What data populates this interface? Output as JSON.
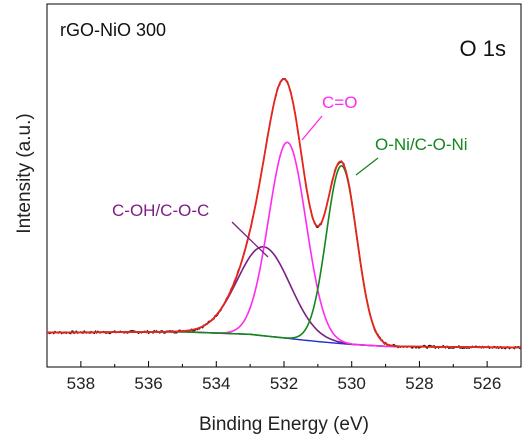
{
  "chart_data": {
    "type": "line",
    "sample_label": "rGO-NiO 300",
    "region_label": "O 1s",
    "xlabel": "Binding Energy (eV)",
    "ylabel": "Intensity (a.u.)",
    "xlim": [
      539,
      525
    ],
    "ylim": [
      0,
      1
    ],
    "x_ticks": [
      538,
      536,
      534,
      532,
      530,
      528,
      526
    ],
    "grid": false,
    "colors": {
      "raw": "#111111",
      "envelope": "#e8241c",
      "background": "#1f2bd6",
      "coh": "#7b1f84",
      "co": "#ff2bf0",
      "oni": "#15861b"
    },
    "peaks": [
      {
        "name": "C-OH/C-O-C",
        "center": 532.6,
        "sigma": 0.78,
        "height": 0.245,
        "color": "#7b1f84"
      },
      {
        "name": "C=O",
        "center": 531.9,
        "sigma": 0.55,
        "height": 0.54,
        "color": "#ff2bf0"
      },
      {
        "name": "O-Ni/C-O-Ni",
        "center": 530.3,
        "sigma": 0.45,
        "height": 0.49,
        "color": "#15861b"
      }
    ],
    "background_curve": {
      "x": [
        539,
        535,
        533,
        532,
        531,
        530,
        529,
        527,
        525
      ],
      "y": [
        0.095,
        0.097,
        0.09,
        0.08,
        0.07,
        0.062,
        0.057,
        0.055,
        0.054
      ]
    },
    "annotations": [
      {
        "text": "C-OH/C-O-C",
        "color": "#7b1f84"
      },
      {
        "text": "C=O",
        "color": "#ff2bf0"
      },
      {
        "text": "O-Ni/C-O-Ni",
        "color": "#15861b"
      }
    ]
  }
}
